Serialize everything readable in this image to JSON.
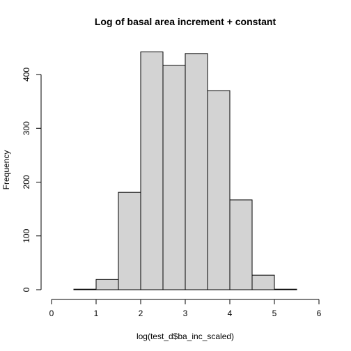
{
  "chart_data": {
    "type": "bar",
    "title": "Log of basal area increment + constant",
    "xlabel": "log(test_d$ba_inc_scaled)",
    "ylabel": "Frequency",
    "bins": [
      {
        "x0": 0.5,
        "x1": 1.0,
        "count": 1
      },
      {
        "x0": 1.0,
        "x1": 1.5,
        "count": 19
      },
      {
        "x0": 1.5,
        "x1": 2.0,
        "count": 181
      },
      {
        "x0": 2.0,
        "x1": 2.5,
        "count": 442
      },
      {
        "x0": 2.5,
        "x1": 3.0,
        "count": 417
      },
      {
        "x0": 3.0,
        "x1": 3.5,
        "count": 439
      },
      {
        "x0": 3.5,
        "x1": 4.0,
        "count": 370
      },
      {
        "x0": 4.0,
        "x1": 4.5,
        "count": 167
      },
      {
        "x0": 4.5,
        "x1": 5.0,
        "count": 27
      },
      {
        "x0": 5.0,
        "x1": 5.5,
        "count": 1
      }
    ],
    "xlim": [
      0,
      6
    ],
    "ylim": [
      0,
      442
    ],
    "x_ticks": [
      "0",
      "1",
      "2",
      "3",
      "4",
      "5",
      "6"
    ],
    "y_ticks": [
      "0",
      "100",
      "200",
      "300",
      "400"
    ],
    "grid": false,
    "bar_fill": "#d3d3d3",
    "bar_stroke": "#000000"
  }
}
